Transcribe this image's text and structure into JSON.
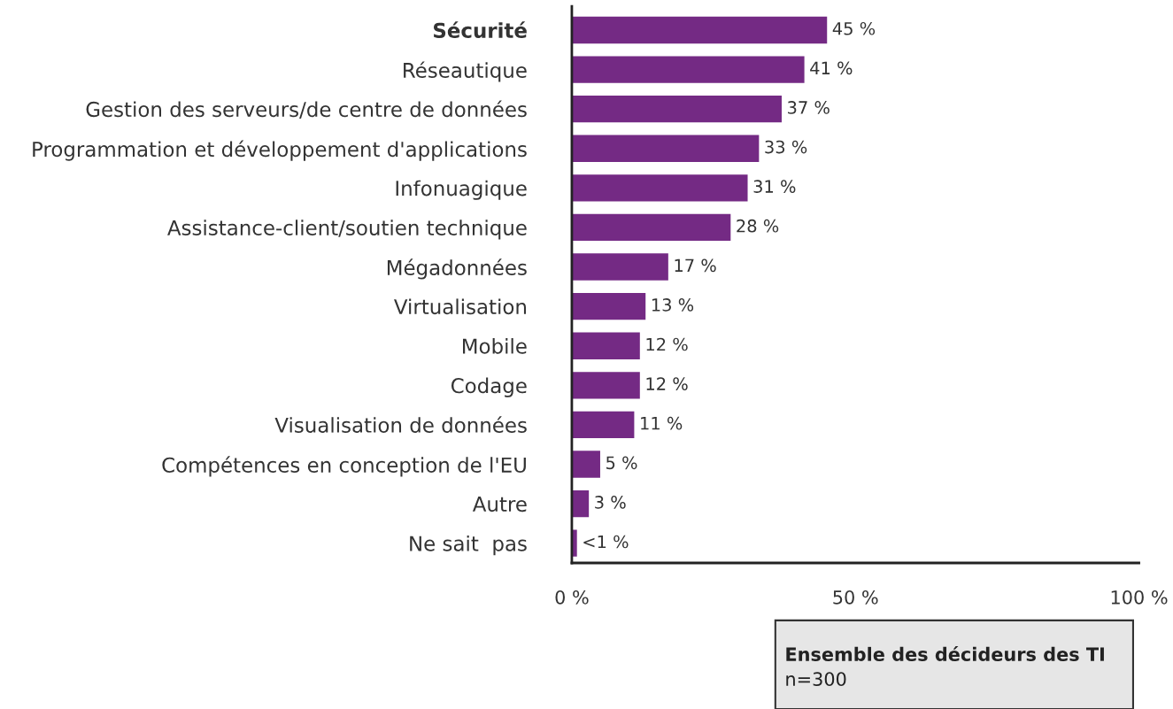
{
  "chart_data": {
    "type": "bar",
    "orientation": "horizontal",
    "categories": [
      "Sécurité",
      "Réseautique",
      "Gestion des serveurs/de centre de données",
      "Programmation et développement d'applications",
      "Infonuagique",
      "Assistance-client/soutien technique",
      "Mégadonnées",
      "Virtualisation",
      "Mobile",
      "Codage",
      "Visualisation de données",
      "Compétences en conception de l'EU",
      "Autre",
      "Ne sait  pas"
    ],
    "values": [
      45,
      41,
      37,
      33,
      31,
      28,
      17,
      13,
      12,
      12,
      11,
      5,
      3,
      0.9
    ],
    "value_labels": [
      "45 %",
      "41 %",
      "37 %",
      "33 %",
      "31 %",
      "28 %",
      "17 %",
      "13 %",
      "12 %",
      "12 %",
      "11 %",
      "5 %",
      "3 %",
      "<1 %"
    ],
    "color": "#742a84",
    "xlim": [
      0,
      100
    ],
    "xticks": [
      {
        "value": 0,
        "label": "0 %"
      },
      {
        "value": 50,
        "label": "50 %"
      },
      {
        "value": 100,
        "label": "100 %"
      }
    ],
    "grid": false,
    "annotations": [
      "Ensemble des décideurs des TI",
      "n=300"
    ]
  }
}
